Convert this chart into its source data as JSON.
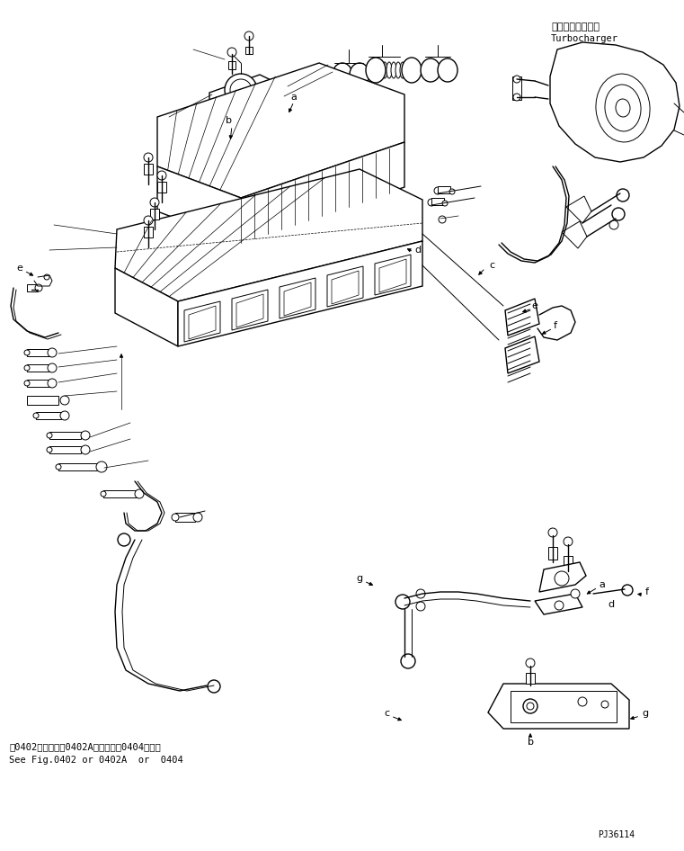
{
  "fig_width": 7.61,
  "fig_height": 9.46,
  "dpi": 100,
  "bg_color": "#ffffff",
  "line_color": "#000000",
  "title_jp": "ターボチャージャ",
  "title_en": "Turbocharger",
  "bottom_text_jp": "第0402図または第0402A図または第0404図参照",
  "bottom_text_en": "See Fig.0402 or 0402A  or  0404",
  "part_id": "PJ36114"
}
